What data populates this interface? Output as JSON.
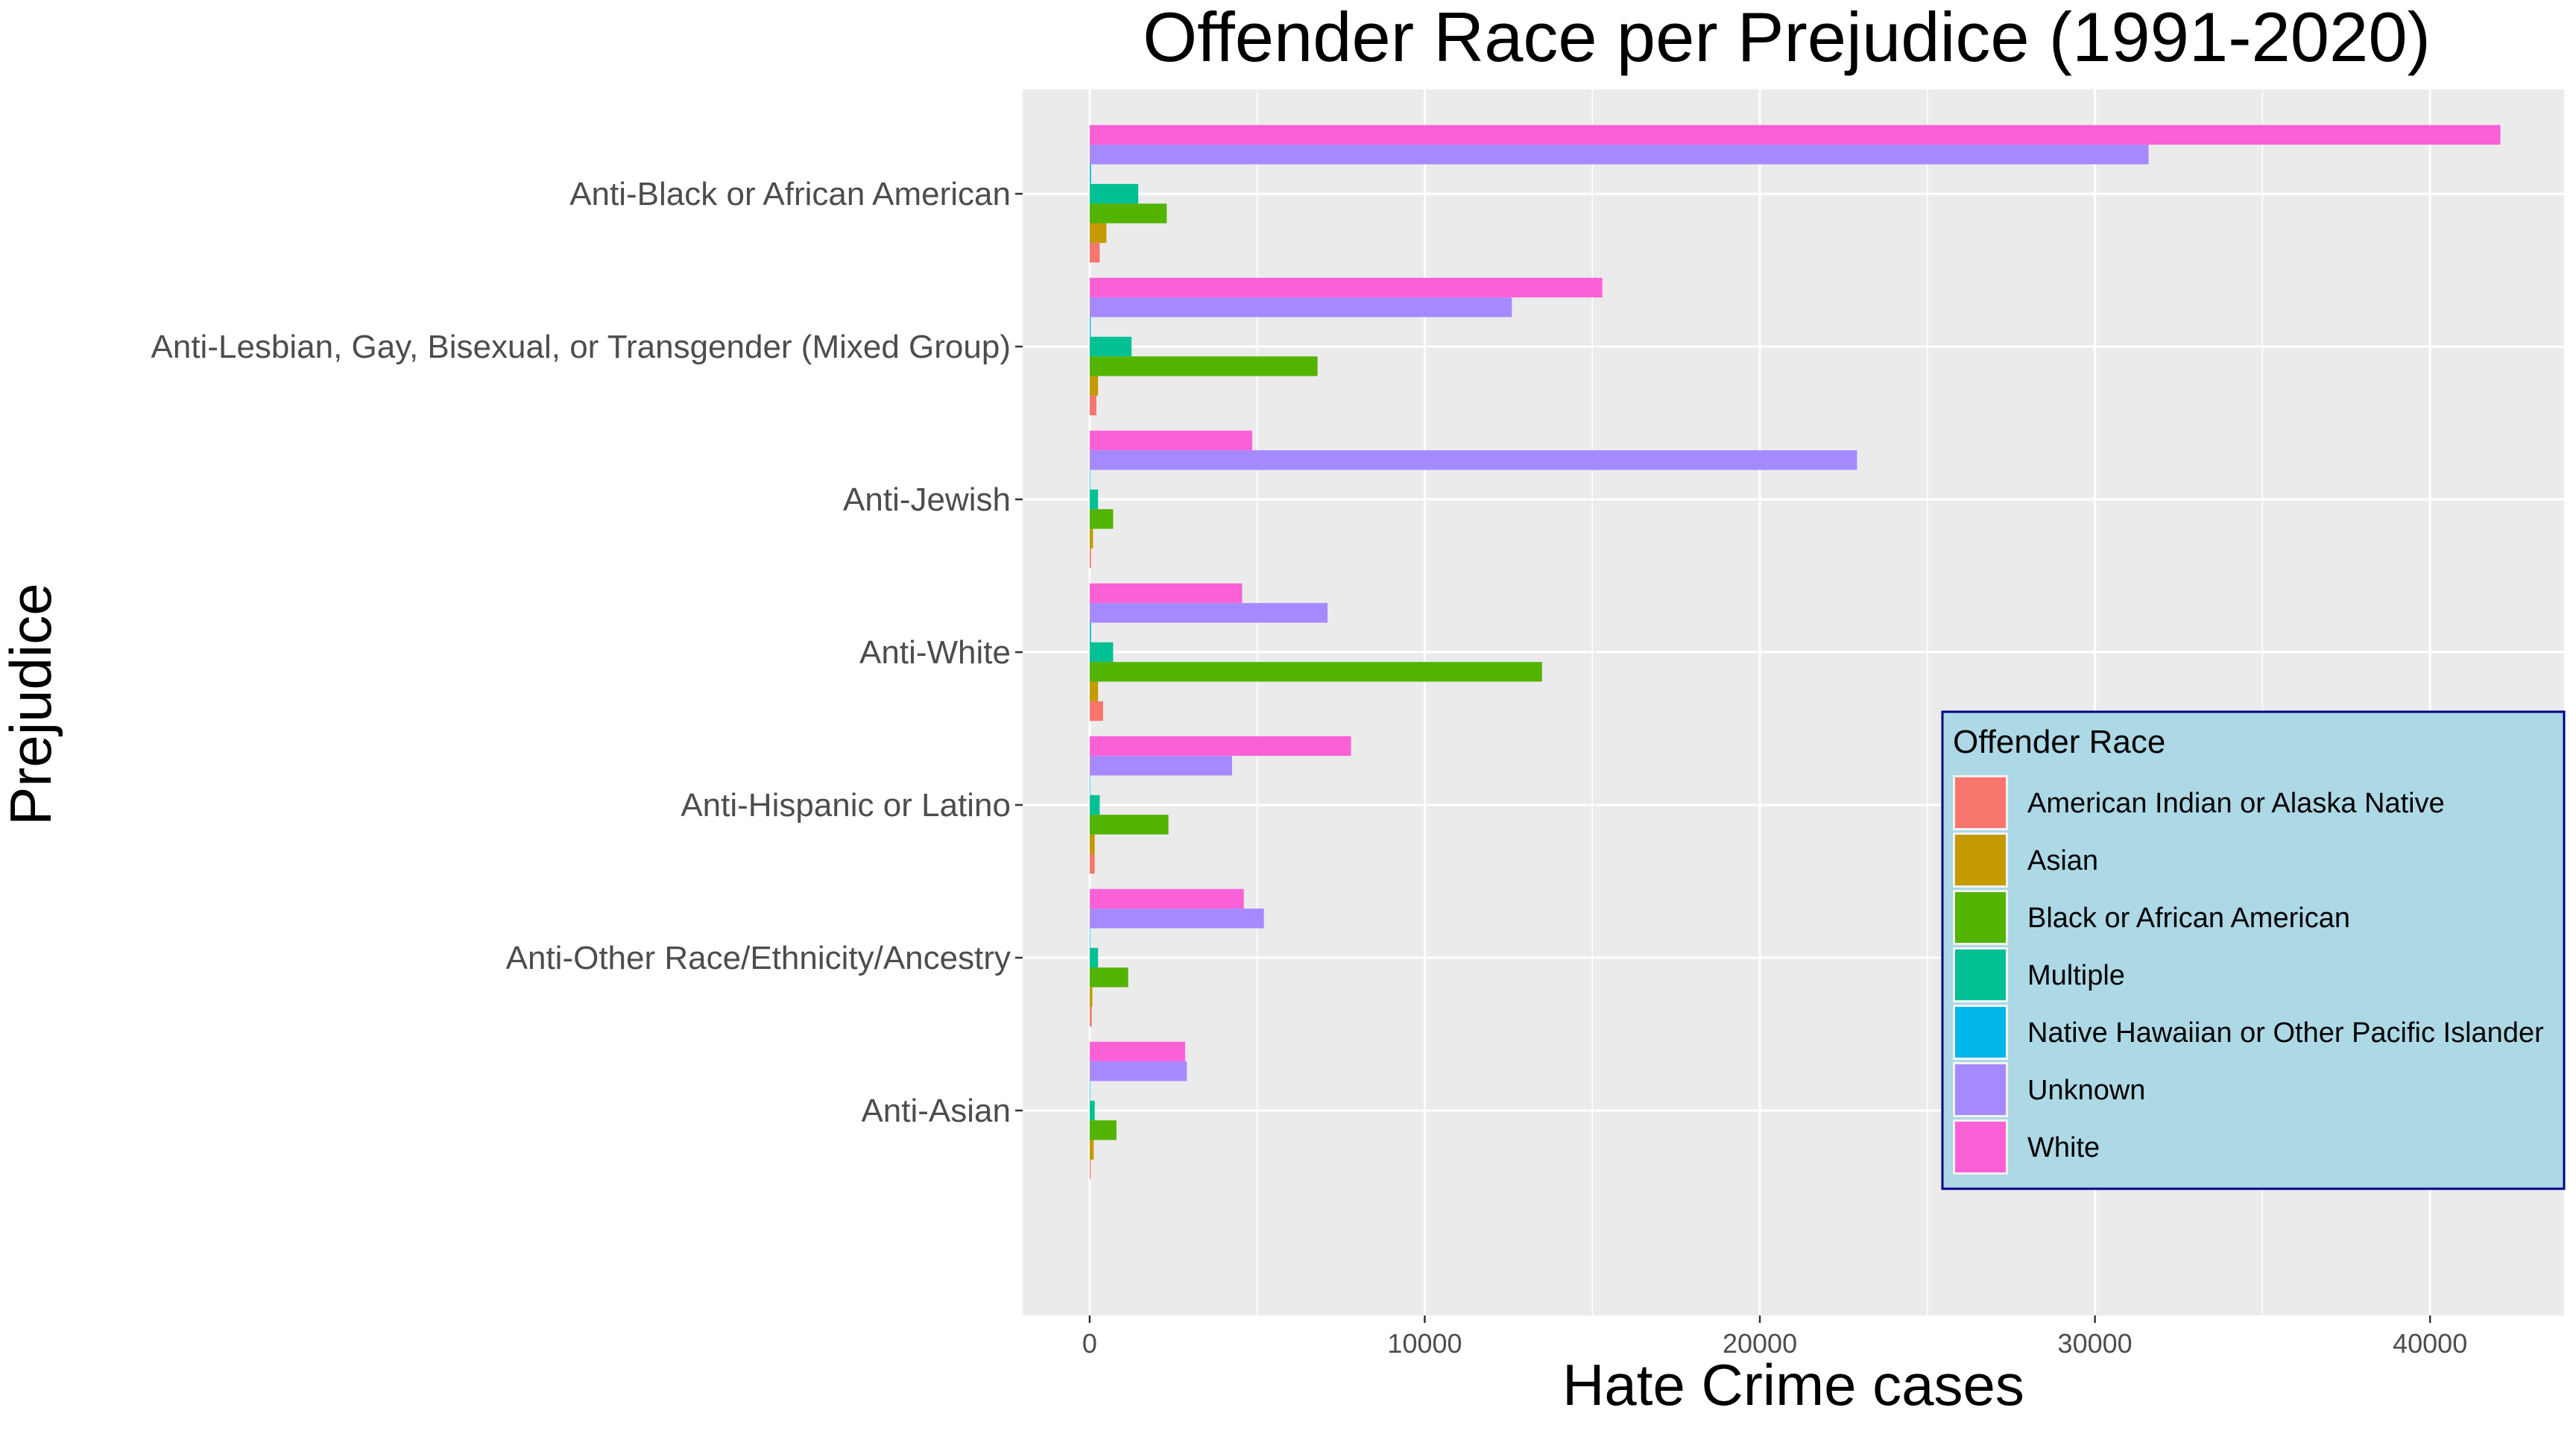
{
  "chart_data": {
    "type": "bar",
    "orientation": "horizontal",
    "title": "Offender Race per Prejudice (1991-2020)",
    "xlabel": "Hate Crime cases",
    "ylabel": "Prejudice",
    "xlim": [
      -2000,
      44000
    ],
    "x_ticks": [
      0,
      10000,
      20000,
      30000,
      40000
    ],
    "grid": true,
    "legend_position": "right",
    "legend_title": "Offender Race",
    "categories": [
      "Anti-Black or African American",
      "Anti-Lesbian, Gay, Bisexual, or Transgender (Mixed Group)",
      "Anti-Jewish",
      "Anti-White",
      "Anti-Hispanic or Latino",
      "Anti-Other Race/Ethnicity/Ancestry",
      "Anti-Asian"
    ],
    "series": [
      {
        "name": "American Indian or Alaska Native",
        "color": "#F8766D",
        "values": [
          300,
          200,
          40,
          400,
          150,
          60,
          30
        ]
      },
      {
        "name": "Asian",
        "color": "#C49A00",
        "values": [
          500,
          250,
          100,
          250,
          150,
          80,
          120
        ]
      },
      {
        "name": "Black or African American",
        "color": "#53B400",
        "values": [
          2300,
          6800,
          700,
          13500,
          2350,
          1150,
          800
        ]
      },
      {
        "name": "Multiple",
        "color": "#00C094",
        "values": [
          1450,
          1250,
          250,
          700,
          300,
          250,
          150
        ]
      },
      {
        "name": "Native Hawaiian or Other Pacific Islander",
        "color": "#00B6EB",
        "values": [
          40,
          30,
          15,
          40,
          15,
          10,
          10
        ]
      },
      {
        "name": "Unknown",
        "color": "#A58AFF",
        "values": [
          31600,
          12600,
          22900,
          7100,
          4250,
          5200,
          2900
        ]
      },
      {
        "name": "White",
        "color": "#FB61D7",
        "values": [
          42100,
          15300,
          4850,
          4550,
          7800,
          4600,
          2850
        ]
      }
    ]
  }
}
